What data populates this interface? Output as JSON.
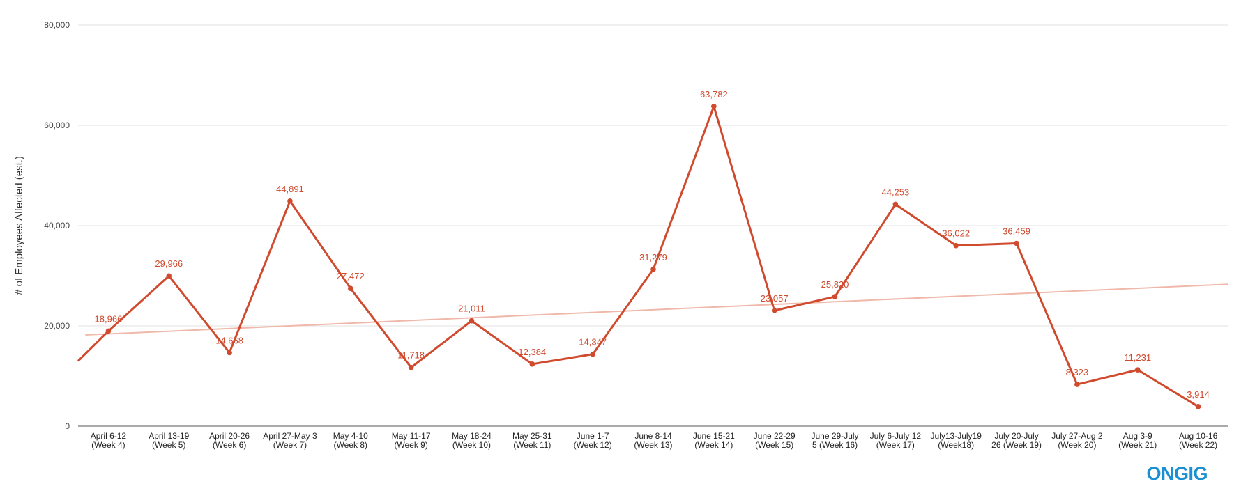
{
  "chart_data": {
    "type": "line",
    "ylabel": "# of Employees Affected (est.)",
    "xlabel": "",
    "ylim": [
      0,
      80000
    ],
    "y_ticks": [
      0,
      20000,
      40000,
      60000,
      80000
    ],
    "y_tick_labels": [
      "0",
      "20,000",
      "40,000",
      "60,000",
      "80,000"
    ],
    "grid": true,
    "categories": [
      [
        "April 6-12",
        "(Week 4)"
      ],
      [
        "April 13-19",
        "(Week 5)"
      ],
      [
        "April 20-26",
        "(Week 6)"
      ],
      [
        "April 27-May 3",
        "(Week 7)"
      ],
      [
        "May 4-10",
        "(Week 8)"
      ],
      [
        "May 11-17",
        "(Week 9)"
      ],
      [
        "May 18-24",
        "(Week 10)"
      ],
      [
        "May 25-31",
        "(Week 11)"
      ],
      [
        "June 1-7",
        "(Week 12)"
      ],
      [
        "June 8-14",
        "(Week 13)"
      ],
      [
        "June 15-21",
        "(Week 14)"
      ],
      [
        "June 22-29",
        "(Week 15)"
      ],
      [
        "June 29-July",
        "5 (Week 16)"
      ],
      [
        "July 6-July 12",
        "(Week 17)"
      ],
      [
        "July13-July19",
        "(Week18)"
      ],
      [
        "July 20-July",
        "26 (Week 19)"
      ],
      [
        "July 27-Aug 2",
        "(Week 20)"
      ],
      [
        "Aug 3-9",
        "(Week 21)"
      ],
      [
        "Aug 10-16",
        "(Week 22)"
      ]
    ],
    "series": [
      {
        "values": [
          18966,
          29966,
          14668,
          44891,
          27472,
          11718,
          21011,
          12384,
          14347,
          31279,
          63782,
          23057,
          25820,
          44253,
          36022,
          36459,
          8323,
          11231,
          3914
        ],
        "labels": [
          "18,966",
          "29,966",
          "14,668",
          "44,891",
          "27,472",
          "11,718",
          "21,011",
          "12,384",
          "14,347",
          "31,279",
          "63,782",
          "23,057",
          "25,820",
          "44,253",
          "36,022",
          "36,459",
          "8,323",
          "11,231",
          "3,914"
        ],
        "color": "#d04a2e",
        "line_enters_from_left_at": 13000
      }
    ],
    "trendline": {
      "start": 18200,
      "end": 28300,
      "color": "#f0b8aa"
    }
  },
  "logo_text": "ONGIG",
  "colors": {
    "line": "#d04a2e",
    "trend": "#f0b8aa",
    "grid": "#e2e2e2",
    "logo": "#1a8fd1"
  }
}
